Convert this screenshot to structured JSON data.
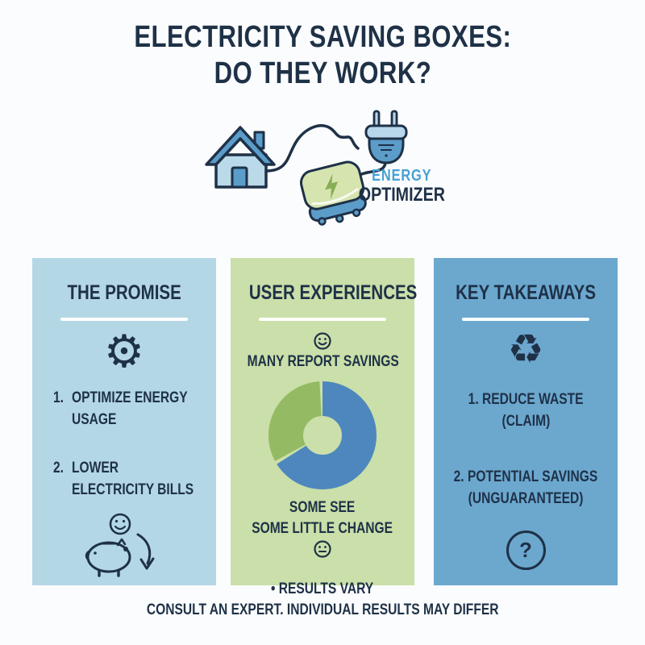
{
  "title": {
    "line1": "ELECTRICITY SAVING BOXES:",
    "line2": "DO THEY WORK?"
  },
  "hero": {
    "brand_line1": "ENERGY",
    "brand_line2": "OPTIMIZER"
  },
  "columns": [
    {
      "title": "THE PROMISE",
      "items": [
        {
          "num": "1.",
          "line1": "OPTIMIZE ENERGY",
          "line2": "USAGE"
        },
        {
          "num": "2.",
          "line1": "LOWER",
          "line2": "ELECTRICITY BILLS"
        }
      ]
    },
    {
      "title": "USER EXPERIENCES",
      "top_note": "MANY REPORT SAVINGS",
      "mid_line1": "SOME SEE",
      "mid_line2": "SOME LITTLE CHANGE",
      "bullet_marker": "•",
      "bullet_text": "RESULTS VARY"
    },
    {
      "title": "KEY TAKEAWAYS",
      "items": [
        {
          "num": "1.",
          "line1": "REDUCE WASTE",
          "line2": "(CLAIM)"
        },
        {
          "num": "2.",
          "line1": "POTENTIAL SAVINGS",
          "line2": "(UNGUARANTEED)"
        }
      ]
    }
  ],
  "icons": {
    "gear": "⚙",
    "recycle": "♻",
    "question_mark": "?"
  },
  "chart_data": {
    "type": "pie",
    "variant": "donut",
    "title": "",
    "legend_position": "none",
    "segments": [
      {
        "label": "Many report savings",
        "value": 67,
        "color": "#4d87bd"
      },
      {
        "label": "Some see little change",
        "value": 33,
        "color": "#94ba63"
      }
    ]
  },
  "footer": {
    "text": "CONSULT AN EXPERT. INDIVIDUAL RESULTS MAY DIFFER"
  },
  "colors": {
    "navy": "#1e3147",
    "accent-blue": "#46a0d6",
    "col1-bg": "#b4d7e6",
    "col2-bg": "#cadfa9",
    "col3-bg": "#6ca7ce",
    "donut-blue": "#4d87bd",
    "donut-green": "#94ba63",
    "house-fill": "#bad9e9",
    "mid-blue": "#5b9cc9",
    "prong-blue": "#b9d7ea",
    "device-green": "#d6e5b0",
    "bolt-green": "#86ae54",
    "page-bg": "#fbfcfd"
  }
}
